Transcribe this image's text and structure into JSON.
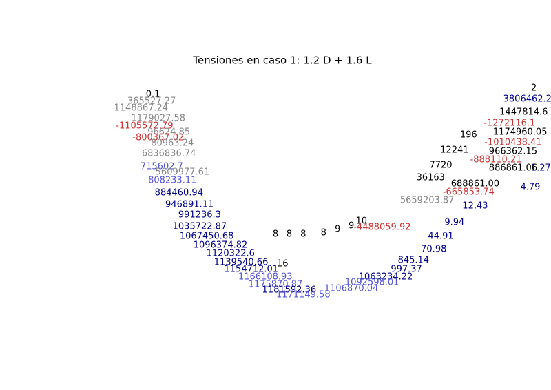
{
  "chart_data": {
    "type": "text-scatter",
    "title": "Tensiones en caso 1: 1.2 D + 1.6 L",
    "xlim": [
      0,
      100
    ],
    "ylim": [
      0,
      100
    ],
    "points": [
      {
        "x": 9.7,
        "y": 94.7,
        "label": "0.1",
        "color": "#000000"
      },
      {
        "x": 9.4,
        "y": 91.6,
        "label": "365527.27",
        "color": "#888888"
      },
      {
        "x": 7.0,
        "y": 88.4,
        "label": "1148867.24",
        "color": "#888888"
      },
      {
        "x": 10.9,
        "y": 83.8,
        "label": "1179027.58",
        "color": "#888888"
      },
      {
        "x": 7.8,
        "y": 80.3,
        "label": "-1105572.79",
        "color": "#cc3333"
      },
      {
        "x": 13.3,
        "y": 77.5,
        "label": "96624.85",
        "color": "#888888"
      },
      {
        "x": 10.9,
        "y": 75.0,
        "label": "-800367.02",
        "color": "#cc3333"
      },
      {
        "x": 14.1,
        "y": 72.5,
        "label": "80963.24",
        "color": "#888888"
      },
      {
        "x": 13.3,
        "y": 67.8,
        "label": "6836836.74",
        "color": "#888888"
      },
      {
        "x": 11.7,
        "y": 61.9,
        "label": "715602.7",
        "color": "#5555dd"
      },
      {
        "x": 16.4,
        "y": 59.4,
        "label": "5609977.61",
        "color": "#888888"
      },
      {
        "x": 14.1,
        "y": 55.6,
        "label": "808233.11",
        "color": "#5555dd"
      },
      {
        "x": 15.6,
        "y": 50.0,
        "label": "884460.94",
        "color": "#00008b"
      },
      {
        "x": 18.0,
        "y": 44.7,
        "label": "946891.11",
        "color": "#00008b"
      },
      {
        "x": 20.3,
        "y": 40.0,
        "label": "991236.3",
        "color": "#00008b"
      },
      {
        "x": 20.3,
        "y": 34.7,
        "label": "1035722.87",
        "color": "#00008b"
      },
      {
        "x": 21.9,
        "y": 30.3,
        "label": "1067450.68",
        "color": "#00008b"
      },
      {
        "x": 25.0,
        "y": 26.3,
        "label": "1096374.82",
        "color": "#00008b"
      },
      {
        "x": 27.3,
        "y": 22.5,
        "label": "1120322.6",
        "color": "#00008b"
      },
      {
        "x": 29.7,
        "y": 18.4,
        "label": "1139540.66",
        "color": "#00008b"
      },
      {
        "x": 32.0,
        "y": 15.3,
        "label": "1154712.01",
        "color": "#00008b"
      },
      {
        "x": 35.2,
        "y": 11.9,
        "label": "1166108.93",
        "color": "#5555dd"
      },
      {
        "x": 37.5,
        "y": 8.4,
        "label": "1175870.87",
        "color": "#5555dd"
      },
      {
        "x": 40.6,
        "y": 5.9,
        "label": "1181592.36",
        "color": "#00008b"
      },
      {
        "x": 43.8,
        "y": 3.8,
        "label": "1171149.58",
        "color": "#5555dd"
      },
      {
        "x": 37.5,
        "y": 31.3,
        "label": "8",
        "color": "#000000"
      },
      {
        "x": 40.6,
        "y": 31.3,
        "label": "8",
        "color": "#000000"
      },
      {
        "x": 43.8,
        "y": 31.3,
        "label": "8",
        "color": "#000000"
      },
      {
        "x": 48.4,
        "y": 31.9,
        "label": "8",
        "color": "#000000"
      },
      {
        "x": 51.6,
        "y": 33.4,
        "label": "9",
        "color": "#000000"
      },
      {
        "x": 54.7,
        "y": 35.0,
        "label": "9",
        "color": "#000000"
      },
      {
        "x": 57.0,
        "y": 37.2,
        "label": "10",
        "color": "#000000"
      },
      {
        "x": 39.1,
        "y": 17.8,
        "label": "16",
        "color": "#000000"
      },
      {
        "x": 96.1,
        "y": 97.5,
        "label": "2",
        "color": "#000000"
      },
      {
        "x": 95.3,
        "y": 92.5,
        "label": "3806462.21",
        "color": "#00008b"
      },
      {
        "x": 93.8,
        "y": 86.6,
        "label": "1447814.6",
        "color": "#000000"
      },
      {
        "x": 90.6,
        "y": 81.6,
        "label": "-1272116.1",
        "color": "#cc3333"
      },
      {
        "x": 93.0,
        "y": 77.5,
        "label": "1174960.05",
        "color": "#000000"
      },
      {
        "x": 91.4,
        "y": 72.8,
        "label": "-1010438.41",
        "color": "#cc3333"
      },
      {
        "x": 91.4,
        "y": 68.8,
        "label": "966362.15",
        "color": "#000000"
      },
      {
        "x": 87.5,
        "y": 65.0,
        "label": "-888110.21",
        "color": "#cc3333"
      },
      {
        "x": 91.4,
        "y": 61.3,
        "label": "886861.06",
        "color": "#000000"
      },
      {
        "x": 97.7,
        "y": 61.3,
        "label": "1.27",
        "color": "#00008b"
      },
      {
        "x": 95.3,
        "y": 52.5,
        "label": "4.79",
        "color": "#00008b"
      },
      {
        "x": 82.8,
        "y": 54.1,
        "label": "688861.00",
        "color": "#000000"
      },
      {
        "x": 81.3,
        "y": 50.3,
        "label": "-665853.74",
        "color": "#cc3333"
      },
      {
        "x": 82.8,
        "y": 44.1,
        "label": "12.43",
        "color": "#00008b"
      },
      {
        "x": 71.9,
        "y": 46.6,
        "label": "5659203.87",
        "color": "#888888"
      },
      {
        "x": 78.1,
        "y": 36.6,
        "label": "9.94",
        "color": "#00008b"
      },
      {
        "x": 75.0,
        "y": 30.3,
        "label": "44.91",
        "color": "#00008b"
      },
      {
        "x": 73.4,
        "y": 24.4,
        "label": "70.98",
        "color": "#00008b"
      },
      {
        "x": 68.8,
        "y": 19.4,
        "label": "845.14",
        "color": "#00008b"
      },
      {
        "x": 67.2,
        "y": 15.3,
        "label": "997.37",
        "color": "#00008b"
      },
      {
        "x": 62.5,
        "y": 11.9,
        "label": "1063234.22",
        "color": "#00008b"
      },
      {
        "x": 59.4,
        "y": 9.4,
        "label": "1092598.01",
        "color": "#5555dd"
      },
      {
        "x": 54.7,
        "y": 6.6,
        "label": "1106870.04",
        "color": "#5555dd"
      },
      {
        "x": 61.7,
        "y": 34.4,
        "label": "-4488059.92",
        "color": "#cc3333"
      },
      {
        "x": 75.0,
        "y": 62.5,
        "label": "7720",
        "color": "#000000"
      },
      {
        "x": 78.1,
        "y": 69.4,
        "label": "12241",
        "color": "#000000"
      },
      {
        "x": 81.3,
        "y": 76.3,
        "label": "196",
        "color": "#000000"
      },
      {
        "x": 72.7,
        "y": 56.9,
        "label": "36163",
        "color": "#000000"
      }
    ]
  }
}
